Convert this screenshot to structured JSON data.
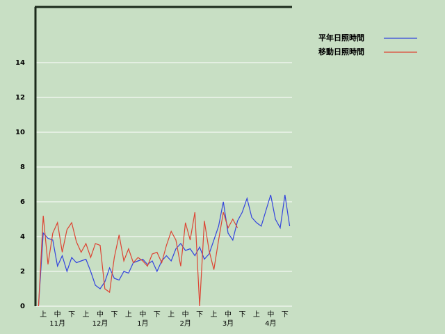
{
  "chart_data": {
    "type": "line",
    "categories": [
      null,
      "上",
      null,
      null,
      "中",
      null,
      null,
      "下",
      null,
      null,
      "上",
      null,
      null,
      "中",
      null,
      null,
      "下",
      null,
      null,
      "上",
      null,
      null,
      "中",
      null,
      null,
      "下",
      null,
      null,
      "上",
      null,
      null,
      "中",
      null,
      null,
      "下",
      null,
      null,
      "上",
      null,
      null,
      "中",
      null,
      null,
      "下",
      null,
      null,
      "上",
      null,
      null,
      "中",
      null,
      null,
      "下",
      null
    ],
    "months": [
      "11月",
      "12月",
      "1月",
      "2月",
      "3月",
      "4月"
    ],
    "series": [
      {
        "name": "平年日照時間",
        "color": "#3344dd",
        "values": [
          0,
          4.2,
          3.9,
          3.8,
          2.3,
          2.9,
          2.0,
          2.8,
          2.5,
          2.6,
          2.7,
          2.0,
          1.2,
          1.0,
          1.4,
          2.2,
          1.6,
          1.5,
          2.0,
          1.9,
          2.5,
          2.6,
          2.7,
          2.4,
          2.6,
          2.0,
          2.6,
          2.9,
          2.6,
          3.3,
          3.6,
          3.2,
          3.3,
          2.9,
          3.4,
          2.7,
          3.0,
          3.8,
          4.6,
          6.0,
          4.2,
          3.8,
          4.9,
          5.4,
          6.2,
          5.1,
          4.8,
          4.6,
          5.5,
          6.4,
          5.0,
          4.5,
          6.4,
          4.6
        ]
      },
      {
        "name": "移動日照時間",
        "color": "#dd4433",
        "values": [
          0,
          5.2,
          2.4,
          4.2,
          4.8,
          3.1,
          4.4,
          4.8,
          3.7,
          3.1,
          3.6,
          2.8,
          3.6,
          3.5,
          1.0,
          0.8,
          2.8,
          4.1,
          2.6,
          3.3,
          2.5,
          2.8,
          2.6,
          2.3,
          3.0,
          3.1,
          2.5,
          3.5,
          4.3,
          3.8,
          2.3,
          4.8,
          3.8,
          5.4,
          0,
          4.9,
          3.2,
          2.1,
          3.8,
          5.4,
          4.5,
          5.0,
          4.5,
          null,
          null,
          null,
          null,
          null,
          null,
          null,
          null,
          null,
          null,
          null
        ]
      }
    ],
    "ylim": [
      0,
      17.2
    ],
    "yticks": [
      0,
      2,
      4,
      6,
      8,
      10,
      12,
      14
    ],
    "grid": true
  }
}
